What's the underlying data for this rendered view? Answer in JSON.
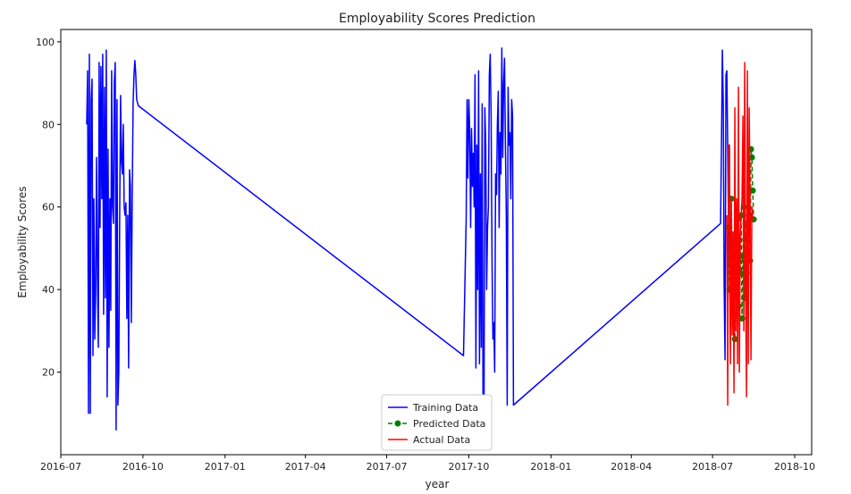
{
  "chart_data": {
    "type": "line",
    "title": "Employability Scores Prediction",
    "xlabel": "year",
    "ylabel": "Employability Scores",
    "x_axis_type": "date",
    "xlim": [
      "2016-07-01",
      "2018-10-20"
    ],
    "ylim": [
      0,
      103
    ],
    "x_ticks": [
      "2016-07",
      "2016-10",
      "2017-01",
      "2017-04",
      "2017-07",
      "2017-10",
      "2018-01",
      "2018-04",
      "2018-07",
      "2018-10"
    ],
    "y_ticks": [
      20,
      40,
      60,
      80,
      100
    ],
    "grid": false,
    "legend_position": "bottom-center",
    "series": [
      {
        "name": "Training Data",
        "style": "line",
        "color": "#0000ff",
        "points": [
          [
            "2016-07-30",
            80
          ],
          [
            "2016-07-31",
            93
          ],
          [
            "2016-08-01",
            10
          ],
          [
            "2016-08-02",
            97
          ],
          [
            "2016-08-03",
            10
          ],
          [
            "2016-08-04",
            86
          ],
          [
            "2016-08-05",
            91
          ],
          [
            "2016-08-06",
            24
          ],
          [
            "2016-08-07",
            62
          ],
          [
            "2016-08-08",
            28
          ],
          [
            "2016-08-09",
            39
          ],
          [
            "2016-08-10",
            72
          ],
          [
            "2016-08-11",
            43
          ],
          [
            "2016-08-12",
            26
          ],
          [
            "2016-08-13",
            95
          ],
          [
            "2016-08-14",
            55
          ],
          [
            "2016-08-15",
            94
          ],
          [
            "2016-08-16",
            62
          ],
          [
            "2016-08-17",
            97
          ],
          [
            "2016-08-18",
            34
          ],
          [
            "2016-08-19",
            89
          ],
          [
            "2016-08-20",
            38
          ],
          [
            "2016-08-21",
            98
          ],
          [
            "2016-08-22",
            14
          ],
          [
            "2016-08-23",
            74
          ],
          [
            "2016-08-24",
            26
          ],
          [
            "2016-08-25",
            62
          ],
          [
            "2016-08-26",
            35
          ],
          [
            "2016-08-27",
            93
          ],
          [
            "2016-08-28",
            60
          ],
          [
            "2016-08-29",
            56
          ],
          [
            "2016-08-30",
            90
          ],
          [
            "2016-08-31",
            95
          ],
          [
            "2016-09-01",
            6
          ],
          [
            "2016-09-02",
            86
          ],
          [
            "2016-09-03",
            12
          ],
          [
            "2016-09-04",
            20
          ],
          [
            "2016-09-05",
            58
          ],
          [
            "2016-09-06",
            87
          ],
          [
            "2016-09-07",
            71
          ],
          [
            "2016-09-08",
            68
          ],
          [
            "2016-09-09",
            80
          ],
          [
            "2016-09-10",
            60
          ],
          [
            "2016-09-11",
            58
          ],
          [
            "2016-09-12",
            61
          ],
          [
            "2016-09-13",
            33
          ],
          [
            "2016-09-14",
            58
          ],
          [
            "2016-09-15",
            21
          ],
          [
            "2016-09-16",
            69
          ],
          [
            "2016-09-17",
            65
          ],
          [
            "2016-09-18",
            32
          ],
          [
            "2016-09-19",
            62
          ],
          [
            "2016-09-20",
            85
          ],
          [
            "2016-09-21",
            92
          ],
          [
            "2016-09-22",
            95.5
          ],
          [
            "2016-09-23",
            92
          ],
          [
            "2016-09-24",
            86
          ],
          [
            "2016-09-26",
            84.5
          ],
          [
            "2017-09-25",
            24
          ],
          [
            "2017-09-28",
            57
          ],
          [
            "2017-09-29",
            86
          ],
          [
            "2017-09-30",
            67
          ],
          [
            "2017-10-01",
            86
          ],
          [
            "2017-10-02",
            78
          ],
          [
            "2017-10-03",
            55
          ],
          [
            "2017-10-04",
            79
          ],
          [
            "2017-10-05",
            65
          ],
          [
            "2017-10-06",
            73
          ],
          [
            "2017-10-07",
            60
          ],
          [
            "2017-10-08",
            92
          ],
          [
            "2017-10-09",
            21
          ],
          [
            "2017-10-10",
            75
          ],
          [
            "2017-10-11",
            40
          ],
          [
            "2017-10-12",
            93
          ],
          [
            "2017-10-13",
            22
          ],
          [
            "2017-10-14",
            68
          ],
          [
            "2017-10-15",
            26
          ],
          [
            "2017-10-16",
            85
          ],
          [
            "2017-10-17",
            9
          ],
          [
            "2017-10-18",
            5
          ],
          [
            "2017-10-19",
            84
          ],
          [
            "2017-10-20",
            75
          ],
          [
            "2017-10-21",
            40
          ],
          [
            "2017-10-22",
            55
          ],
          [
            "2017-10-23",
            60
          ],
          [
            "2017-10-24",
            92
          ],
          [
            "2017-10-25",
            97
          ],
          [
            "2017-10-26",
            82
          ],
          [
            "2017-10-27",
            48
          ],
          [
            "2017-10-28",
            28
          ],
          [
            "2017-10-29",
            32
          ],
          [
            "2017-10-30",
            20
          ],
          [
            "2017-10-31",
            68
          ],
          [
            "2017-11-01",
            63
          ],
          [
            "2017-11-02",
            80
          ],
          [
            "2017-11-03",
            88
          ],
          [
            "2017-11-04",
            55
          ],
          [
            "2017-11-05",
            78
          ],
          [
            "2017-11-06",
            68
          ],
          [
            "2017-11-07",
            98.5
          ],
          [
            "2017-11-08",
            72
          ],
          [
            "2017-11-09",
            90
          ],
          [
            "2017-11-10",
            96
          ],
          [
            "2017-11-11",
            75
          ],
          [
            "2017-11-12",
            58
          ],
          [
            "2017-11-13",
            12
          ],
          [
            "2017-11-14",
            89
          ],
          [
            "2017-11-15",
            75
          ],
          [
            "2017-11-16",
            78
          ],
          [
            "2017-11-17",
            62
          ],
          [
            "2017-11-18",
            86
          ],
          [
            "2017-11-19",
            82
          ],
          [
            "2017-11-20",
            12
          ],
          [
            "2018-07-10",
            56
          ],
          [
            "2018-07-11",
            75
          ],
          [
            "2018-07-12",
            98
          ],
          [
            "2018-07-13",
            85
          ],
          [
            "2018-07-14",
            41
          ],
          [
            "2018-07-15",
            23
          ],
          [
            "2018-07-16",
            92
          ],
          [
            "2018-07-17",
            93
          ],
          [
            "2018-07-18",
            74
          ],
          [
            "2018-07-19",
            53
          ],
          [
            "2018-07-20",
            54
          ],
          [
            "2018-07-21",
            27
          ],
          [
            "2018-07-22",
            56
          ]
        ]
      },
      {
        "name": "Predicted Data",
        "style": "dashed-line-markers",
        "color": "#008000",
        "points": [
          [
            "2018-07-19",
            55
          ],
          [
            "2018-07-20",
            40
          ],
          [
            "2018-07-21",
            46
          ],
          [
            "2018-07-22",
            62
          ],
          [
            "2018-07-23",
            46
          ],
          [
            "2018-07-24",
            52
          ],
          [
            "2018-07-25",
            42
          ],
          [
            "2018-07-26",
            28
          ],
          [
            "2018-07-27",
            34
          ],
          [
            "2018-07-28",
            50
          ],
          [
            "2018-07-29",
            57
          ],
          [
            "2018-07-30",
            36
          ],
          [
            "2018-07-31",
            52
          ],
          [
            "2018-08-01",
            44
          ],
          [
            "2018-08-02",
            58
          ],
          [
            "2018-08-03",
            33
          ],
          [
            "2018-08-04",
            48
          ],
          [
            "2018-08-05",
            60
          ],
          [
            "2018-08-06",
            38
          ],
          [
            "2018-08-07",
            56
          ],
          [
            "2018-08-08",
            44
          ],
          [
            "2018-08-09",
            53
          ],
          [
            "2018-08-10",
            49
          ],
          [
            "2018-08-11",
            58
          ],
          [
            "2018-08-12",
            47
          ],
          [
            "2018-08-13",
            74
          ],
          [
            "2018-08-14",
            72
          ],
          [
            "2018-08-15",
            64
          ],
          [
            "2018-08-16",
            57
          ]
        ]
      },
      {
        "name": "Actual Data",
        "style": "line",
        "color": "#ff0000",
        "points": [
          [
            "2018-07-17",
            58
          ],
          [
            "2018-07-18",
            12
          ],
          [
            "2018-07-19",
            75
          ],
          [
            "2018-07-20",
            75
          ],
          [
            "2018-07-21",
            22
          ],
          [
            "2018-07-22",
            62
          ],
          [
            "2018-07-23",
            29
          ],
          [
            "2018-07-24",
            54
          ],
          [
            "2018-07-25",
            15
          ],
          [
            "2018-07-26",
            84
          ],
          [
            "2018-07-27",
            30
          ],
          [
            "2018-07-28",
            62
          ],
          [
            "2018-07-29",
            22
          ],
          [
            "2018-07-30",
            89
          ],
          [
            "2018-07-31",
            20
          ],
          [
            "2018-08-01",
            53
          ],
          [
            "2018-08-02",
            58
          ],
          [
            "2018-08-03",
            62
          ],
          [
            "2018-08-04",
            82
          ],
          [
            "2018-08-05",
            30
          ],
          [
            "2018-08-06",
            95
          ],
          [
            "2018-08-07",
            40
          ],
          [
            "2018-08-08",
            14
          ],
          [
            "2018-08-09",
            93
          ],
          [
            "2018-08-10",
            22
          ],
          [
            "2018-08-11",
            84
          ],
          [
            "2018-08-12",
            60
          ],
          [
            "2018-08-13",
            23
          ],
          [
            "2018-08-14",
            60
          ],
          [
            "2018-08-15",
            57
          ]
        ]
      }
    ]
  }
}
